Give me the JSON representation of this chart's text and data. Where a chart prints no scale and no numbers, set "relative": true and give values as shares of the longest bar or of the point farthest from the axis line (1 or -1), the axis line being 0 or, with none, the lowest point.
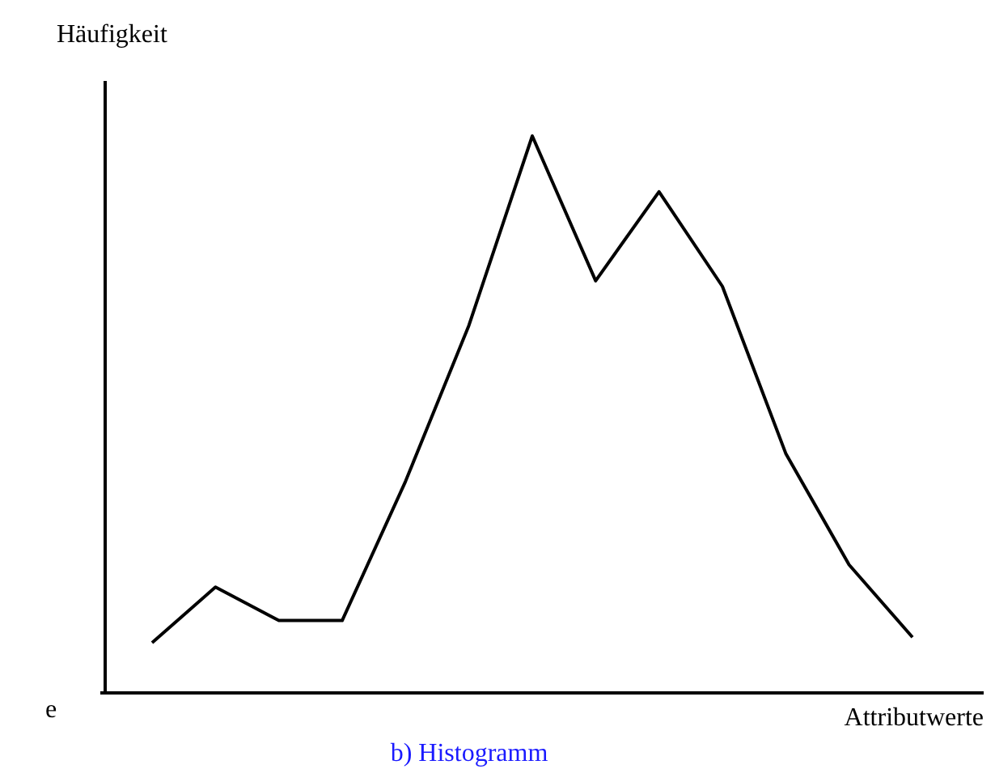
{
  "chart_data": {
    "type": "line",
    "relative": true,
    "title": "b) Histogramm",
    "xlabel": "Attributwerte",
    "ylabel": "Häufigkeit",
    "annotations": [
      "e"
    ],
    "categories": [
      null,
      null,
      null,
      null,
      null,
      null,
      null,
      null,
      null,
      null,
      null,
      null,
      null
    ],
    "series": [
      {
        "color": "#000000",
        "values": [
          0.09,
          0.19,
          0.13,
          0.13,
          0.38,
          0.66,
          1,
          0.74,
          0.9,
          0.73,
          0.43,
          0.23,
          0.1
        ]
      }
    ],
    "marker": "none",
    "line_style": "solid"
  }
}
